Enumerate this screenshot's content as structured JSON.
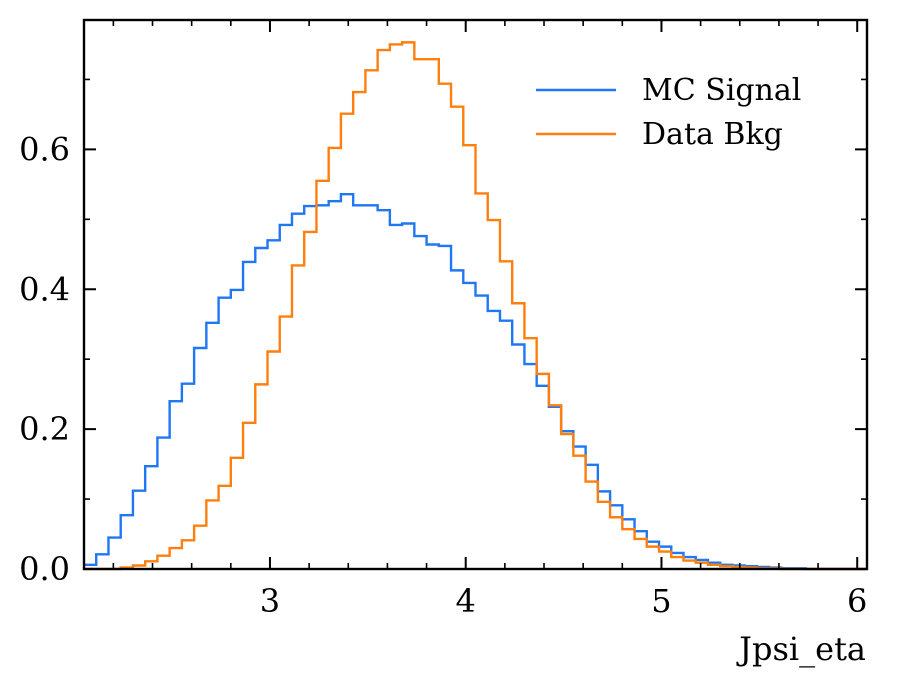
{
  "chart_data": {
    "type": "step-histogram",
    "xlabel": "Jpsi_eta",
    "ylabel": "",
    "xlim": [
      2.05,
      6.05
    ],
    "ylim": [
      0,
      0.785
    ],
    "xticks": [
      3,
      4,
      5,
      6
    ],
    "yticks": [
      0.0,
      0.2,
      0.4,
      0.6
    ],
    "ytick_labels": [
      "0.0",
      "0.2",
      "0.4",
      "0.6"
    ],
    "x_minor_step": 0.2,
    "y_minor_step": 0.1,
    "legend_position": "top-right",
    "bin_start": 2.05,
    "bin_width": 0.0625,
    "series": [
      {
        "name": "MC Signal",
        "color": "#1f77f4",
        "values": [
          0.006,
          0.021,
          0.045,
          0.077,
          0.112,
          0.147,
          0.188,
          0.24,
          0.265,
          0.316,
          0.352,
          0.388,
          0.399,
          0.439,
          0.459,
          0.47,
          0.492,
          0.508,
          0.519,
          0.52,
          0.526,
          0.536,
          0.52,
          0.52,
          0.513,
          0.492,
          0.494,
          0.476,
          0.464,
          0.462,
          0.427,
          0.409,
          0.391,
          0.369,
          0.355,
          0.321,
          0.293,
          0.262,
          0.232,
          0.197,
          0.175,
          0.149,
          0.111,
          0.091,
          0.071,
          0.054,
          0.039,
          0.032,
          0.023,
          0.017,
          0.013,
          0.009,
          0.006,
          0.005,
          0.004,
          0.003,
          0.002,
          0.001,
          0.001,
          0.0,
          0.0,
          0.0,
          0.0,
          0.0
        ]
      },
      {
        "name": "Data Bkg",
        "color": "#ff7f0e",
        "values": [
          0.0,
          0.0,
          0.0,
          0.002,
          0.005,
          0.011,
          0.019,
          0.03,
          0.041,
          0.062,
          0.098,
          0.119,
          0.159,
          0.209,
          0.264,
          0.311,
          0.361,
          0.434,
          0.482,
          0.555,
          0.602,
          0.651,
          0.682,
          0.713,
          0.742,
          0.75,
          0.753,
          0.729,
          0.729,
          0.694,
          0.661,
          0.606,
          0.537,
          0.499,
          0.44,
          0.38,
          0.33,
          0.279,
          0.234,
          0.193,
          0.162,
          0.125,
          0.096,
          0.074,
          0.057,
          0.043,
          0.032,
          0.025,
          0.017,
          0.012,
          0.009,
          0.006,
          0.004,
          0.003,
          0.002,
          0.001,
          0.001,
          0.0,
          0.0,
          0.0,
          0.0,
          0.0,
          0.0,
          0.0
        ]
      }
    ]
  }
}
